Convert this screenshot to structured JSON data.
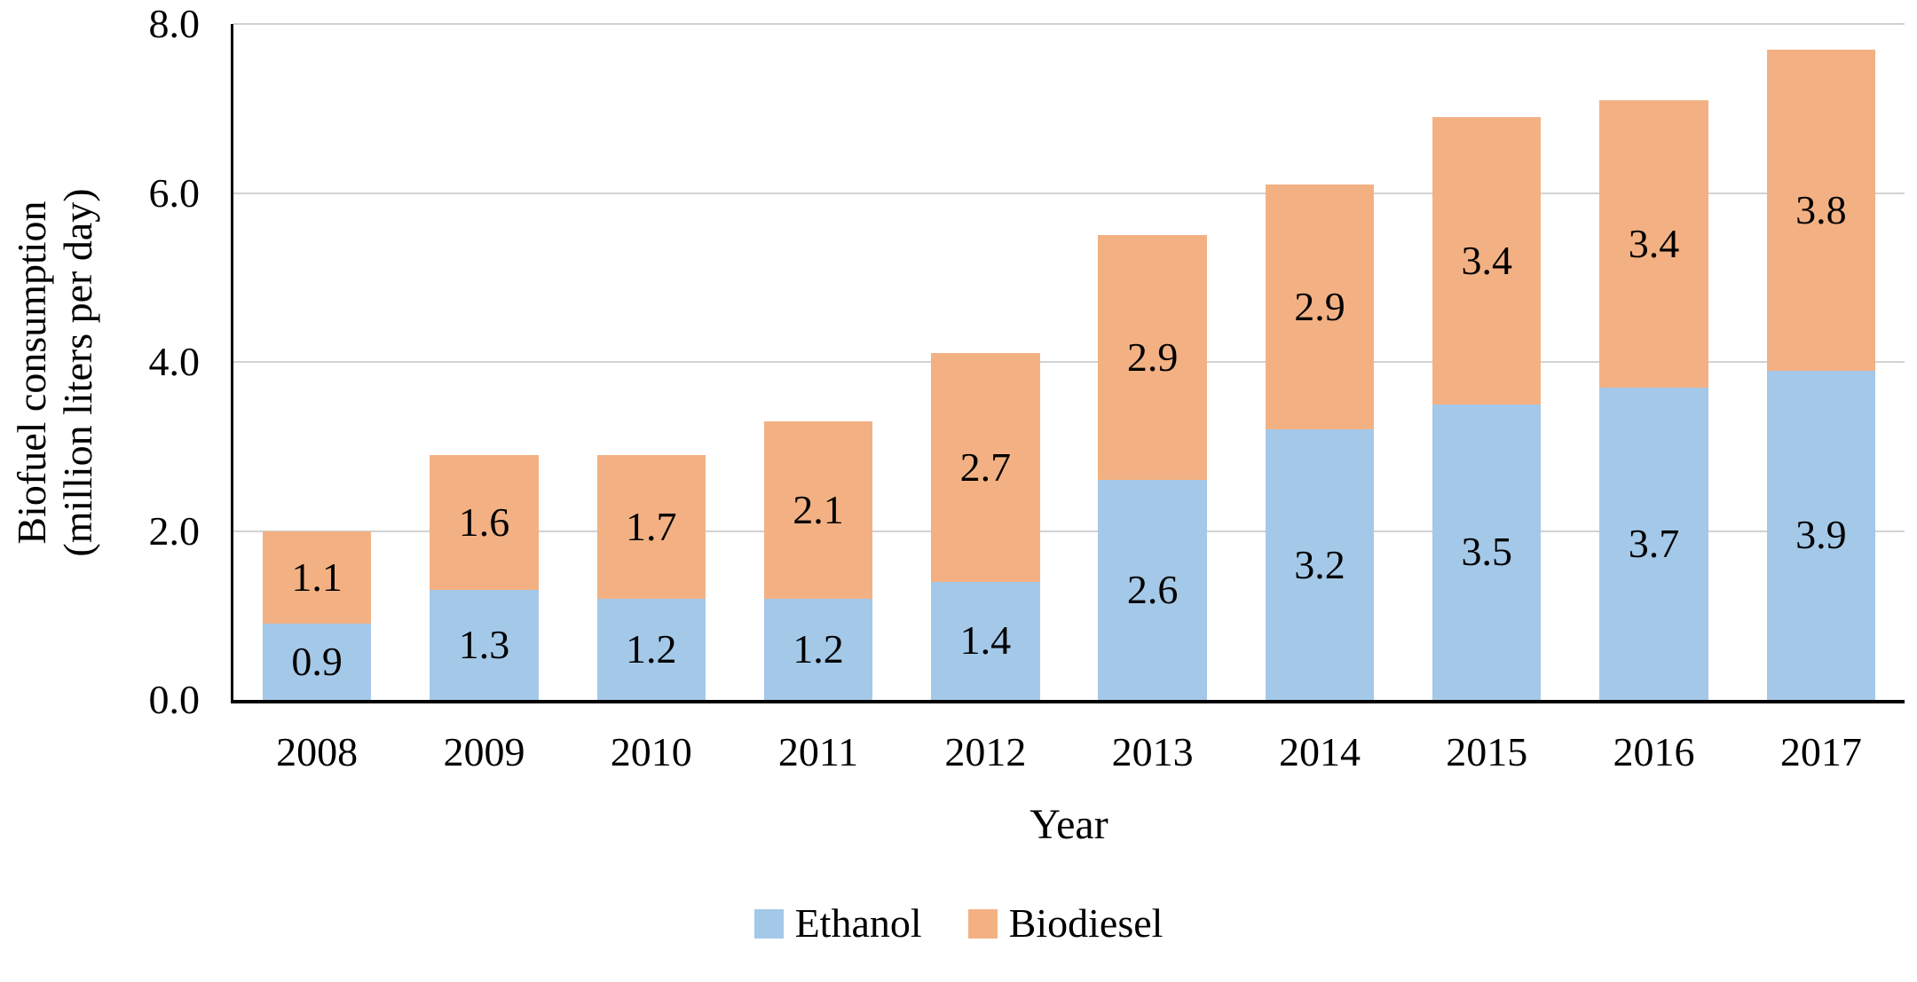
{
  "chart_data": {
    "type": "bar",
    "stacked": true,
    "title": "",
    "xlabel": "Year",
    "ylabel": "Biofuel consumption\n(million liters per day)",
    "categories": [
      "2008",
      "2009",
      "2010",
      "2011",
      "2012",
      "2013",
      "2014",
      "2015",
      "2016",
      "2017"
    ],
    "series": [
      {
        "name": "Ethanol",
        "color": "#A4C8E8",
        "values": [
          0.9,
          1.3,
          1.2,
          1.2,
          1.4,
          2.6,
          3.2,
          3.5,
          3.7,
          3.9
        ]
      },
      {
        "name": "Biodiesel",
        "color": "#F3B183",
        "values": [
          1.1,
          1.6,
          1.7,
          2.1,
          2.7,
          2.9,
          2.9,
          3.4,
          3.4,
          3.8
        ]
      }
    ],
    "ylim": [
      0,
      8
    ],
    "yticks": [
      0,
      2,
      4,
      6,
      8
    ],
    "ytick_labels": [
      "0.0",
      "2.0",
      "4.0",
      "6.0",
      "8.0"
    ],
    "grid": true,
    "legend_position": "bottom",
    "value_labels_shown": true,
    "value_label_decimals": 1
  },
  "colors": {
    "gridline": "#D2D2D2",
    "axis": "#000000",
    "label_text": "#000000",
    "background": "#FFFFFF"
  }
}
